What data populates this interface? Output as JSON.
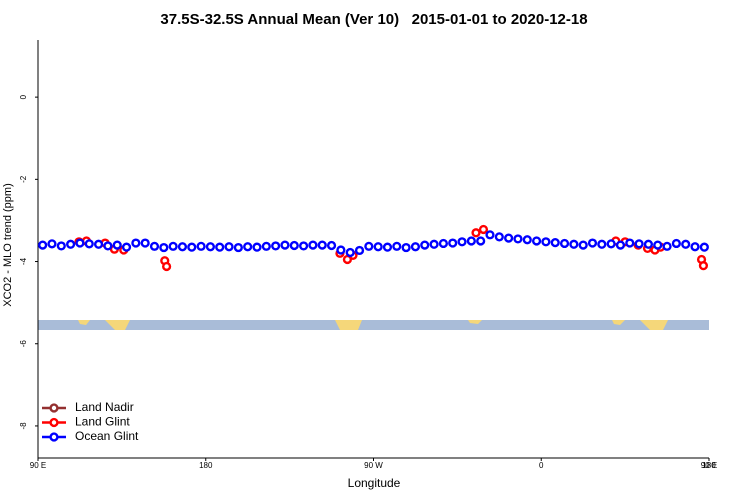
{
  "chart_data": {
    "type": "scatter",
    "title": "37.5S-32.5S Annual Mean (Ver 10)   2015-01-01 to 2020-12-18",
    "x_label": "Longitude",
    "y_label": "XCO2 - MLO trend (ppm)",
    "xlim": [
      90,
      450
    ],
    "ylim": [
      -8.78,
      1.39
    ],
    "xticks": [
      {
        "value": 90,
        "label": "90 E"
      },
      180,
      {
        "value": 270,
        "label": "90 W"
      },
      {
        "value": 360,
        "label": "0"
      },
      {
        "value": 450,
        "label": "90 E"
      },
      {
        "value": 540,
        "label": "180"
      }
    ],
    "yticks": [
      0,
      -2,
      -4,
      -6,
      -8
    ],
    "legend": "bottom-left",
    "series": [
      {
        "name": "Land Nadir",
        "color": "#943030",
        "x": [],
        "values": []
      },
      {
        "name": "Land Glint",
        "color": "#ff0000",
        "x": [
          112,
          116,
          126,
          131,
          136,
          158,
          159,
          252,
          256,
          259,
          325,
          329,
          400,
          405,
          412,
          417,
          421,
          424,
          446,
          447
        ],
        "values": [
          -3.52,
          -3.5,
          -3.55,
          -3.7,
          -3.72,
          -3.98,
          -4.12,
          -3.8,
          -3.95,
          -3.85,
          -3.3,
          -3.22,
          -3.5,
          -3.52,
          -3.6,
          -3.68,
          -3.72,
          -3.65,
          -3.95,
          -4.1
        ]
      },
      {
        "name": "Ocean Glint",
        "color": "#0000ff",
        "x": [
          92.5,
          97.5,
          102.5,
          107.5,
          112.5,
          117.5,
          122.5,
          127.5,
          132.5,
          137.5,
          142.5,
          147.5,
          152.5,
          157.5,
          162.5,
          167.5,
          172.5,
          177.5,
          182.5,
          187.5,
          192.5,
          197.5,
          202.5,
          207.5,
          212.5,
          217.5,
          222.5,
          227.5,
          232.5,
          237.5,
          242.5,
          247.5,
          252.5,
          257.5,
          262.5,
          267.5,
          272.5,
          277.5,
          282.5,
          287.5,
          292.5,
          297.5,
          302.5,
          307.5,
          312.5,
          317.5,
          322.5,
          327.5,
          332.5,
          337.5,
          342.5,
          347.5,
          352.5,
          357.5,
          362.5,
          367.5,
          372.5,
          377.5,
          382.5,
          387.5,
          392.5,
          397.5,
          402.5,
          407.5,
          412.5,
          417.5,
          422.5,
          427.5,
          432.5,
          437.5,
          442.5,
          447.5
        ],
        "values": [
          -3.6,
          -3.57,
          -3.62,
          -3.58,
          -3.55,
          -3.57,
          -3.58,
          -3.62,
          -3.6,
          -3.65,
          -3.55,
          -3.55,
          -3.63,
          -3.66,
          -3.63,
          -3.64,
          -3.65,
          -3.63,
          -3.64,
          -3.65,
          -3.64,
          -3.66,
          -3.64,
          -3.65,
          -3.63,
          -3.62,
          -3.6,
          -3.61,
          -3.62,
          -3.6,
          -3.6,
          -3.61,
          -3.72,
          -3.78,
          -3.73,
          -3.63,
          -3.64,
          -3.65,
          -3.63,
          -3.66,
          -3.64,
          -3.6,
          -3.58,
          -3.56,
          -3.55,
          -3.52,
          -3.5,
          -3.5,
          -3.35,
          -3.4,
          -3.43,
          -3.45,
          -3.47,
          -3.5,
          -3.52,
          -3.54,
          -3.56,
          -3.58,
          -3.6,
          -3.55,
          -3.58,
          -3.57,
          -3.6,
          -3.55,
          -3.57,
          -3.58,
          -3.6,
          -3.63,
          -3.56,
          -3.58,
          -3.64,
          -3.65
        ]
      }
    ]
  }
}
